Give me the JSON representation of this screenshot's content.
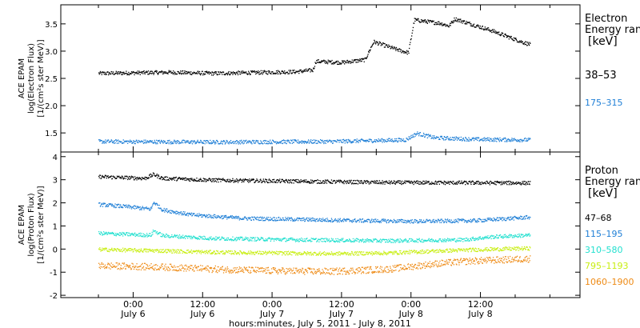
{
  "chart_data": [
    {
      "type": "scatter",
      "panel": "electron",
      "ylabel": [
        "ACE EPAM",
        "log(Electron Flux)",
        "[1/(cm²s ster MeV)]"
      ],
      "ylim": [
        1.15,
        3.85
      ],
      "yticks": [
        1.5,
        2.0,
        2.5,
        3.0,
        3.5
      ],
      "ytick_labels": [
        "1.5",
        "2.0",
        "2.5",
        "3.0",
        "3.5"
      ],
      "legend_title": [
        "Electron",
        "Energy range",
        "[keV]"
      ],
      "series": [
        {
          "name": "38–53",
          "color": "#000000",
          "points": [
            [
              0,
              2.6
            ],
            [
              12,
              2.62
            ],
            [
              20,
              2.6
            ],
            [
              34,
              2.63
            ],
            [
              37,
              2.66
            ],
            [
              37.5,
              2.82
            ],
            [
              42,
              2.8
            ],
            [
              46,
              2.85
            ],
            [
              47.5,
              3.18
            ],
            [
              52,
              3.02
            ],
            [
              53.5,
              2.98
            ],
            [
              54.5,
              3.58
            ],
            [
              59,
              3.52
            ],
            [
              60.5,
              3.47
            ],
            [
              61.5,
              3.6
            ],
            [
              68,
              3.38
            ],
            [
              73,
              3.18
            ],
            [
              74.5,
              3.13
            ]
          ]
        },
        {
          "name": "175–315",
          "color": "#1f7fd6",
          "points": [
            [
              0,
              1.35
            ],
            [
              20,
              1.34
            ],
            [
              40,
              1.35
            ],
            [
              53,
              1.38
            ],
            [
              55,
              1.5
            ],
            [
              58,
              1.42
            ],
            [
              65,
              1.39
            ],
            [
              74.5,
              1.38
            ]
          ]
        }
      ]
    },
    {
      "type": "scatter",
      "panel": "proton",
      "ylabel": [
        "ACE EPAM",
        "log(Proton Flux)",
        "[1/(cm²s ster MeV)]"
      ],
      "ylim": [
        -2.1,
        4.2
      ],
      "yticks": [
        -2,
        -1,
        0,
        1,
        2,
        3,
        4
      ],
      "ytick_labels": [
        "-2",
        "-1",
        "0",
        "1",
        "2",
        "3",
        "4"
      ],
      "legend_title": [
        "Proton",
        "Energy range",
        "[keV]"
      ],
      "series": [
        {
          "name": "47–68",
          "color": "#000000",
          "points": [
            [
              0,
              3.15
            ],
            [
              8,
              3.08
            ],
            [
              9.5,
              3.25
            ],
            [
              11,
              3.08
            ],
            [
              20,
              3.0
            ],
            [
              35,
              2.95
            ],
            [
              50,
              2.9
            ],
            [
              74.5,
              2.88
            ]
          ]
        },
        {
          "name": "115–195",
          "color": "#1f7fd6",
          "points": [
            [
              0,
              1.95
            ],
            [
              5,
              1.85
            ],
            [
              9,
              1.75
            ],
            [
              9.5,
              2.05
            ],
            [
              11,
              1.72
            ],
            [
              16,
              1.5
            ],
            [
              25,
              1.35
            ],
            [
              35,
              1.3
            ],
            [
              45,
              1.25
            ],
            [
              55,
              1.22
            ],
            [
              65,
              1.25
            ],
            [
              74.5,
              1.4
            ]
          ]
        },
        {
          "name": "310–580",
          "color": "#22e0cf",
          "points": [
            [
              0,
              0.7
            ],
            [
              9,
              0.62
            ],
            [
              9.5,
              0.82
            ],
            [
              11,
              0.6
            ],
            [
              20,
              0.48
            ],
            [
              35,
              0.42
            ],
            [
              50,
              0.38
            ],
            [
              63,
              0.42
            ],
            [
              68,
              0.55
            ],
            [
              74.5,
              0.62
            ]
          ]
        },
        {
          "name": "795–1193",
          "color": "#c8ee12",
          "points": [
            [
              0,
              0.0
            ],
            [
              10,
              -0.05
            ],
            [
              20,
              -0.12
            ],
            [
              30,
              -0.15
            ],
            [
              40,
              -0.18
            ],
            [
              50,
              -0.15
            ],
            [
              60,
              -0.05
            ],
            [
              66,
              0.0
            ],
            [
              74.5,
              0.05
            ]
          ]
        },
        {
          "name": "1060–1900",
          "color": "#ee8a14",
          "points": [
            [
              0,
              -0.7
            ],
            [
              10,
              -0.75
            ],
            [
              20,
              -0.85
            ],
            [
              30,
              -0.92
            ],
            [
              40,
              -0.95
            ],
            [
              50,
              -0.85
            ],
            [
              58,
              -0.62
            ],
            [
              64,
              -0.5
            ],
            [
              74.5,
              -0.4
            ]
          ]
        }
      ]
    }
  ],
  "x_axis": {
    "xlim": [
      -6.5,
      83.2
    ],
    "ticks": [
      0,
      6,
      12,
      18,
      24,
      30,
      36,
      42,
      48,
      54,
      60,
      66,
      72,
      78
    ],
    "labeled_ticks": [
      {
        "x": 6,
        "time": "0:00",
        "date": "July 6"
      },
      {
        "x": 18,
        "time": "12:00",
        "date": "July 6"
      },
      {
        "x": 30,
        "time": "0:00",
        "date": "July 7"
      },
      {
        "x": 42,
        "time": "12:00",
        "date": "July 7"
      },
      {
        "x": 54,
        "time": "0:00",
        "date": "July 8"
      },
      {
        "x": 66,
        "time": "12:00",
        "date": "July 8"
      }
    ],
    "xlabel": "hours:minutes, July  5, 2011 - July  8, 2011"
  }
}
